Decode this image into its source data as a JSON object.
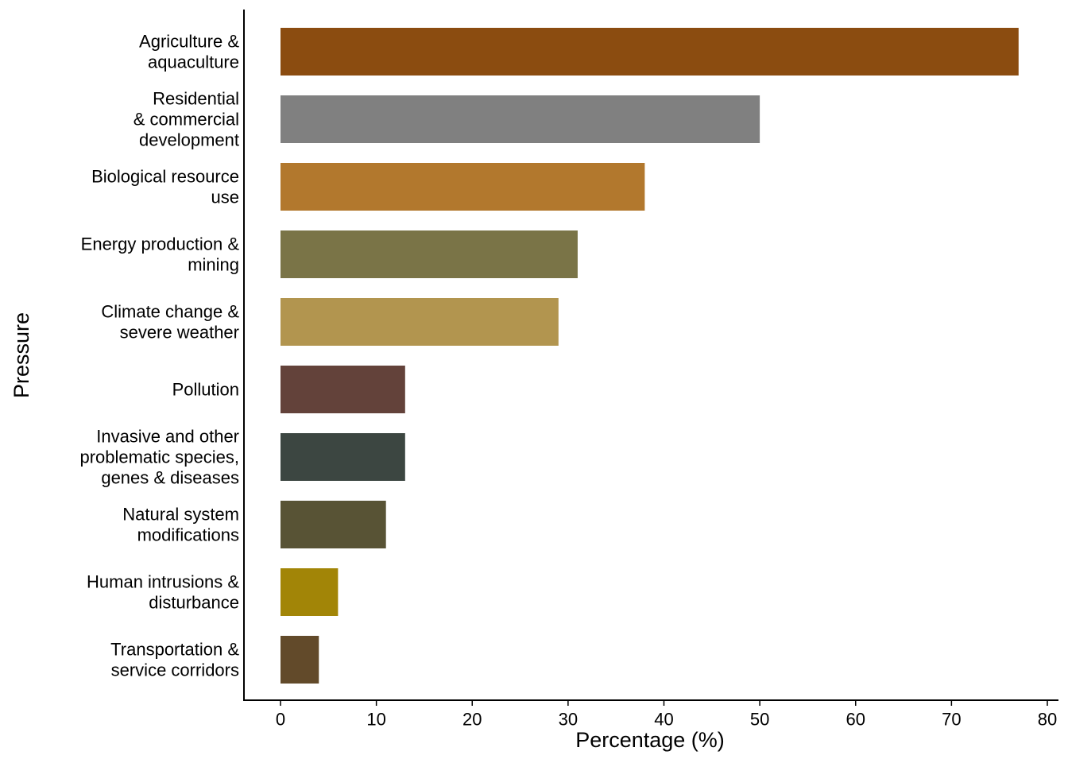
{
  "chart_data": {
    "type": "bar",
    "orientation": "horizontal",
    "title": "",
    "xlabel": "Percentage (%)",
    "ylabel": "Pressure",
    "xlim": [
      0,
      80
    ],
    "xticks": [
      0,
      10,
      20,
      30,
      40,
      50,
      60,
      70,
      80
    ],
    "grid": false,
    "legend": "none",
    "categories": [
      {
        "label_lines": [
          "Agriculture &",
          "aquaculture"
        ],
        "value": 77,
        "color": "#8B4C10"
      },
      {
        "label_lines": [
          "Residential",
          "& commercial",
          "development"
        ],
        "value": 50,
        "color": "#808080"
      },
      {
        "label_lines": [
          "Biological resource",
          "use"
        ],
        "value": 38,
        "color": "#B2782D"
      },
      {
        "label_lines": [
          "Energy production &",
          "mining"
        ],
        "value": 31,
        "color": "#7A7447"
      },
      {
        "label_lines": [
          "Climate change &",
          "severe weather"
        ],
        "value": 29,
        "color": "#B2954F"
      },
      {
        "label_lines": [
          "Pollution"
        ],
        "value": 13,
        "color": "#63423A"
      },
      {
        "label_lines": [
          "Invasive and other",
          "problematic species,",
          "genes & diseases"
        ],
        "value": 13,
        "color": "#3C4641"
      },
      {
        "label_lines": [
          "Natural system",
          "modifications"
        ],
        "value": 11,
        "color": "#585335"
      },
      {
        "label_lines": [
          "Human intrusions &",
          "disturbance"
        ],
        "value": 6,
        "color": "#A28507"
      },
      {
        "label_lines": [
          "Transportation &",
          "service corridors"
        ],
        "value": 4,
        "color": "#624A2A"
      }
    ]
  }
}
